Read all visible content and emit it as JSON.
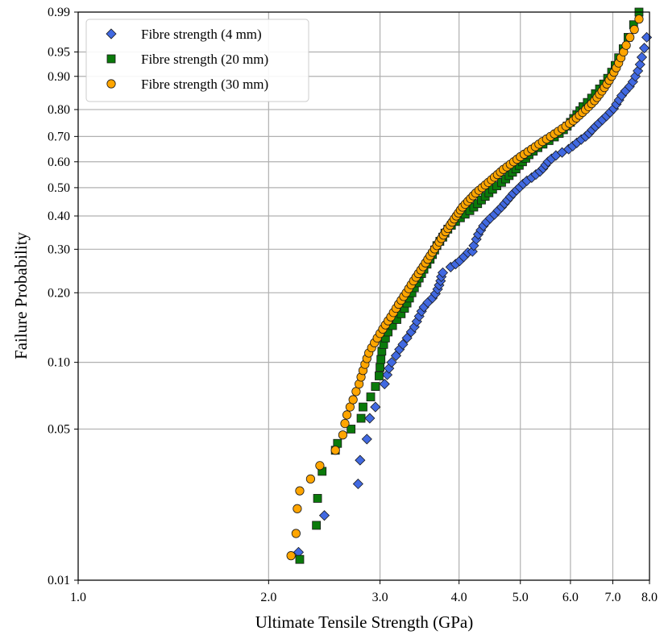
{
  "chart_data": {
    "type": "scatter",
    "title": "",
    "xlabel": "Ultimate Tensile Strength (GPa)",
    "ylabel": "Failure Probability",
    "x_scale": "log",
    "y_scale": "weibull",
    "xlim": [
      1.0,
      8.0
    ],
    "ylim": [
      0.01,
      0.99
    ],
    "x_ticks": [
      1.0,
      2.0,
      3.0,
      4.0,
      5.0,
      6.0,
      7.0,
      8.0
    ],
    "x_tick_labels": [
      "1.0",
      "2.0",
      "3.0",
      "4.0",
      "5.0",
      "6.0",
      "7.0",
      "8.0"
    ],
    "y_ticks": [
      0.01,
      0.05,
      0.1,
      0.2,
      0.3,
      0.4,
      0.5,
      0.6,
      0.7,
      0.8,
      0.9,
      0.95,
      0.99
    ],
    "y_tick_labels": [
      "0.01",
      "0.05",
      "0.10",
      "0.20",
      "0.30",
      "0.40",
      "0.50",
      "0.60",
      "0.70",
      "0.80",
      "0.90",
      "0.95",
      "0.99"
    ],
    "grid": true,
    "legend_position": "top-left",
    "series": [
      {
        "name": "Fibre strength (4 mm)",
        "marker": "diamond",
        "color": "#4169e1",
        "points": [
          [
            2.23,
            0.0135
          ],
          [
            2.45,
            0.02
          ],
          [
            2.77,
            0.028
          ],
          [
            2.79,
            0.036
          ],
          [
            2.86,
            0.045
          ],
          [
            2.89,
            0.056
          ],
          [
            2.95,
            0.063
          ],
          [
            3.05,
            0.08
          ],
          [
            3.08,
            0.088
          ],
          [
            3.1,
            0.094
          ],
          [
            3.13,
            0.1
          ],
          [
            3.18,
            0.107
          ],
          [
            3.22,
            0.114
          ],
          [
            3.26,
            0.12
          ],
          [
            3.31,
            0.128
          ],
          [
            3.36,
            0.136
          ],
          [
            3.4,
            0.143
          ],
          [
            3.43,
            0.151
          ],
          [
            3.46,
            0.159
          ],
          [
            3.49,
            0.167
          ],
          [
            3.52,
            0.174
          ],
          [
            3.57,
            0.182
          ],
          [
            3.63,
            0.19
          ],
          [
            3.67,
            0.198
          ],
          [
            3.7,
            0.207
          ],
          [
            3.72,
            0.215
          ],
          [
            3.74,
            0.224
          ],
          [
            3.75,
            0.233
          ],
          [
            3.77,
            0.242
          ],
          [
            3.88,
            0.255
          ],
          [
            3.95,
            0.262
          ],
          [
            4.01,
            0.27
          ],
          [
            4.07,
            0.28
          ],
          [
            4.13,
            0.291
          ],
          [
            4.2,
            0.294
          ],
          [
            4.22,
            0.31
          ],
          [
            4.26,
            0.328
          ],
          [
            4.29,
            0.342
          ],
          [
            4.33,
            0.355
          ],
          [
            4.37,
            0.368
          ],
          [
            4.42,
            0.38
          ],
          [
            4.48,
            0.392
          ],
          [
            4.55,
            0.405
          ],
          [
            4.61,
            0.418
          ],
          [
            4.67,
            0.43
          ],
          [
            4.72,
            0.442
          ],
          [
            4.77,
            0.454
          ],
          [
            4.82,
            0.466
          ],
          [
            4.87,
            0.478
          ],
          [
            4.93,
            0.49
          ],
          [
            4.99,
            0.502
          ],
          [
            5.05,
            0.514
          ],
          [
            5.12,
            0.526
          ],
          [
            5.21,
            0.538
          ],
          [
            5.29,
            0.55
          ],
          [
            5.37,
            0.562
          ],
          [
            5.43,
            0.574
          ],
          [
            5.48,
            0.587
          ],
          [
            5.53,
            0.6
          ],
          [
            5.6,
            0.612
          ],
          [
            5.69,
            0.625
          ],
          [
            5.82,
            0.637
          ],
          [
            5.96,
            0.65
          ],
          [
            6.05,
            0.662
          ],
          [
            6.14,
            0.675
          ],
          [
            6.24,
            0.688
          ],
          [
            6.34,
            0.7
          ],
          [
            6.42,
            0.712
          ],
          [
            6.49,
            0.725
          ],
          [
            6.57,
            0.738
          ],
          [
            6.65,
            0.75
          ],
          [
            6.74,
            0.763
          ],
          [
            6.84,
            0.777
          ],
          [
            6.93,
            0.79
          ],
          [
            7.02,
            0.803
          ],
          [
            7.09,
            0.818
          ],
          [
            7.16,
            0.832
          ],
          [
            7.23,
            0.846
          ],
          [
            7.33,
            0.86
          ],
          [
            7.44,
            0.873
          ],
          [
            7.53,
            0.886
          ],
          [
            7.6,
            0.9
          ],
          [
            7.67,
            0.913
          ],
          [
            7.73,
            0.927
          ],
          [
            7.78,
            0.941
          ],
          [
            7.85,
            0.956
          ],
          [
            7.92,
            0.97
          ]
        ]
      },
      {
        "name": "Fibre strength (20 mm)",
        "marker": "square",
        "color": "#0a7a0a",
        "points": [
          [
            2.24,
            0.0125
          ],
          [
            2.38,
            0.018
          ],
          [
            2.39,
            0.024
          ],
          [
            2.43,
            0.032
          ],
          [
            2.55,
            0.04
          ],
          [
            2.57,
            0.043
          ],
          [
            2.7,
            0.05
          ],
          [
            2.8,
            0.056
          ],
          [
            2.82,
            0.063
          ],
          [
            2.9,
            0.07
          ],
          [
            2.95,
            0.078
          ],
          [
            2.99,
            0.087
          ],
          [
            3.0,
            0.095
          ],
          [
            3.01,
            0.103
          ],
          [
            3.02,
            0.112
          ],
          [
            3.04,
            0.12
          ],
          [
            3.06,
            0.128
          ],
          [
            3.09,
            0.136
          ],
          [
            3.14,
            0.145
          ],
          [
            3.19,
            0.154
          ],
          [
            3.24,
            0.163
          ],
          [
            3.28,
            0.172
          ],
          [
            3.31,
            0.181
          ],
          [
            3.34,
            0.19
          ],
          [
            3.37,
            0.2
          ],
          [
            3.4,
            0.21
          ],
          [
            3.43,
            0.22
          ],
          [
            3.46,
            0.23
          ],
          [
            3.49,
            0.24
          ],
          [
            3.52,
            0.25
          ],
          [
            3.56,
            0.262
          ],
          [
            3.6,
            0.274
          ],
          [
            3.63,
            0.286
          ],
          [
            3.66,
            0.298
          ],
          [
            3.69,
            0.31
          ],
          [
            3.73,
            0.322
          ],
          [
            3.77,
            0.334
          ],
          [
            3.8,
            0.346
          ],
          [
            3.84,
            0.358
          ],
          [
            3.89,
            0.37
          ],
          [
            3.95,
            0.382
          ],
          [
            4.02,
            0.394
          ],
          [
            4.09,
            0.406
          ],
          [
            4.16,
            0.418
          ],
          [
            4.22,
            0.43
          ],
          [
            4.28,
            0.442
          ],
          [
            4.34,
            0.455
          ],
          [
            4.4,
            0.468
          ],
          [
            4.46,
            0.481
          ],
          [
            4.52,
            0.494
          ],
          [
            4.59,
            0.507
          ],
          [
            4.67,
            0.52
          ],
          [
            4.74,
            0.533
          ],
          [
            4.8,
            0.546
          ],
          [
            4.86,
            0.559
          ],
          [
            4.92,
            0.572
          ],
          [
            4.98,
            0.586
          ],
          [
            5.04,
            0.6
          ],
          [
            5.1,
            0.614
          ],
          [
            5.16,
            0.628
          ],
          [
            5.24,
            0.642
          ],
          [
            5.33,
            0.656
          ],
          [
            5.43,
            0.67
          ],
          [
            5.55,
            0.684
          ],
          [
            5.66,
            0.698
          ],
          [
            5.76,
            0.712
          ],
          [
            5.85,
            0.726
          ],
          [
            5.93,
            0.74
          ],
          [
            6.0,
            0.754
          ],
          [
            6.07,
            0.768
          ],
          [
            6.14,
            0.782
          ],
          [
            6.21,
            0.796
          ],
          [
            6.28,
            0.81
          ],
          [
            6.38,
            0.824
          ],
          [
            6.48,
            0.838
          ],
          [
            6.57,
            0.852
          ],
          [
            6.67,
            0.866
          ],
          [
            6.77,
            0.88
          ],
          [
            6.87,
            0.895
          ],
          [
            6.97,
            0.91
          ],
          [
            7.06,
            0.925
          ],
          [
            7.15,
            0.94
          ],
          [
            7.27,
            0.955
          ],
          [
            7.4,
            0.97
          ],
          [
            7.55,
            0.982
          ],
          [
            7.7,
            0.99
          ]
        ]
      },
      {
        "name": "Fibre strength (30 mm)",
        "marker": "circle",
        "color": "#ffa500",
        "points": [
          [
            2.17,
            0.013
          ],
          [
            2.21,
            0.0165
          ],
          [
            2.22,
            0.0215
          ],
          [
            2.24,
            0.026
          ],
          [
            2.33,
            0.0295
          ],
          [
            2.41,
            0.034
          ],
          [
            2.55,
            0.04
          ],
          [
            2.62,
            0.047
          ],
          [
            2.64,
            0.053
          ],
          [
            2.66,
            0.058
          ],
          [
            2.69,
            0.063
          ],
          [
            2.72,
            0.068
          ],
          [
            2.75,
            0.074
          ],
          [
            2.78,
            0.08
          ],
          [
            2.8,
            0.086
          ],
          [
            2.82,
            0.092
          ],
          [
            2.84,
            0.098
          ],
          [
            2.86,
            0.104
          ],
          [
            2.88,
            0.11
          ],
          [
            2.91,
            0.116
          ],
          [
            2.94,
            0.122
          ],
          [
            2.97,
            0.128
          ],
          [
            3.0,
            0.134
          ],
          [
            3.03,
            0.14
          ],
          [
            3.06,
            0.146
          ],
          [
            3.09,
            0.152
          ],
          [
            3.12,
            0.158
          ],
          [
            3.15,
            0.165
          ],
          [
            3.18,
            0.172
          ],
          [
            3.21,
            0.179
          ],
          [
            3.24,
            0.186
          ],
          [
            3.27,
            0.193
          ],
          [
            3.3,
            0.2
          ],
          [
            3.33,
            0.208
          ],
          [
            3.36,
            0.216
          ],
          [
            3.39,
            0.224
          ],
          [
            3.42,
            0.232
          ],
          [
            3.45,
            0.24
          ],
          [
            3.48,
            0.248
          ],
          [
            3.51,
            0.256
          ],
          [
            3.54,
            0.265
          ],
          [
            3.57,
            0.274
          ],
          [
            3.6,
            0.283
          ],
          [
            3.63,
            0.292
          ],
          [
            3.66,
            0.301
          ],
          [
            3.69,
            0.31
          ],
          [
            3.72,
            0.32
          ],
          [
            3.75,
            0.33
          ],
          [
            3.78,
            0.34
          ],
          [
            3.81,
            0.35
          ],
          [
            3.84,
            0.36
          ],
          [
            3.87,
            0.37
          ],
          [
            3.9,
            0.38
          ],
          [
            3.93,
            0.39
          ],
          [
            3.96,
            0.4
          ],
          [
            3.99,
            0.41
          ],
          [
            4.02,
            0.42
          ],
          [
            4.05,
            0.43
          ],
          [
            4.09,
            0.44
          ],
          [
            4.13,
            0.45
          ],
          [
            4.17,
            0.46
          ],
          [
            4.21,
            0.47
          ],
          [
            4.25,
            0.48
          ],
          [
            4.3,
            0.49
          ],
          [
            4.35,
            0.5
          ],
          [
            4.4,
            0.51
          ],
          [
            4.45,
            0.52
          ],
          [
            4.5,
            0.53
          ],
          [
            4.55,
            0.54
          ],
          [
            4.6,
            0.55
          ],
          [
            4.65,
            0.56
          ],
          [
            4.7,
            0.57
          ],
          [
            4.76,
            0.58
          ],
          [
            4.82,
            0.59
          ],
          [
            4.88,
            0.6
          ],
          [
            4.94,
            0.61
          ],
          [
            5.0,
            0.62
          ],
          [
            5.07,
            0.63
          ],
          [
            5.14,
            0.64
          ],
          [
            5.21,
            0.65
          ],
          [
            5.28,
            0.66
          ],
          [
            5.35,
            0.67
          ],
          [
            5.42,
            0.68
          ],
          [
            5.5,
            0.69
          ],
          [
            5.58,
            0.7
          ],
          [
            5.66,
            0.71
          ],
          [
            5.74,
            0.72
          ],
          [
            5.82,
            0.73
          ],
          [
            5.9,
            0.74
          ],
          [
            5.98,
            0.75
          ],
          [
            6.06,
            0.76
          ],
          [
            6.13,
            0.77
          ],
          [
            6.2,
            0.78
          ],
          [
            6.27,
            0.79
          ],
          [
            6.34,
            0.8
          ],
          [
            6.41,
            0.81
          ],
          [
            6.48,
            0.82
          ],
          [
            6.55,
            0.83
          ],
          [
            6.61,
            0.84
          ],
          [
            6.67,
            0.85
          ],
          [
            6.73,
            0.86
          ],
          [
            6.79,
            0.87
          ],
          [
            6.85,
            0.88
          ],
          [
            6.91,
            0.89
          ],
          [
            6.97,
            0.9
          ],
          [
            7.03,
            0.91
          ],
          [
            7.09,
            0.92
          ],
          [
            7.15,
            0.93
          ],
          [
            7.21,
            0.94
          ],
          [
            7.28,
            0.95
          ],
          [
            7.35,
            0.96
          ],
          [
            7.45,
            0.97
          ],
          [
            7.57,
            0.978
          ],
          [
            7.7,
            0.986
          ]
        ]
      }
    ]
  }
}
